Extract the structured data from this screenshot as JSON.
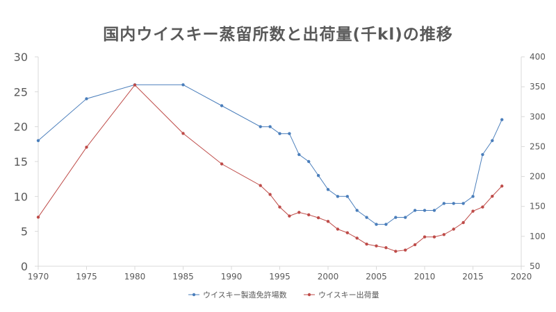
{
  "chart_data": {
    "type": "line",
    "title": "国内ウイスキー蒸留所数と出荷量(千kl)の推移",
    "xlabel": "",
    "ylabel": "",
    "xlim": [
      1970,
      2020
    ],
    "x_ticks": [
      1970,
      1975,
      1980,
      1985,
      1990,
      1995,
      2000,
      2005,
      2010,
      2015,
      2020
    ],
    "ylim_left": [
      0,
      30
    ],
    "y_ticks_left": [
      0,
      5,
      10,
      15,
      20,
      25,
      30
    ],
    "ylim_right": [
      50,
      400
    ],
    "y_ticks_right": [
      50,
      100,
      150,
      200,
      250,
      300,
      350,
      400
    ],
    "grid": false,
    "legend_position": "bottom",
    "series": [
      {
        "name": "ウイスキー製造免許場数",
        "axis": "left",
        "color": "#4a7ebb",
        "x": [
          1970,
          1975,
          1980,
          1985,
          1989,
          1993,
          1994,
          1995,
          1996,
          1997,
          1998,
          1999,
          2000,
          2001,
          2002,
          2003,
          2004,
          2005,
          2006,
          2007,
          2008,
          2009,
          2010,
          2011,
          2012,
          2013,
          2014,
          2015,
          2016,
          2017,
          2018
        ],
        "values": [
          18,
          24,
          26,
          26,
          23,
          20,
          20,
          19,
          19,
          16,
          15,
          13,
          11,
          10,
          10,
          8,
          7,
          6,
          6,
          7,
          7,
          8,
          8,
          8,
          9,
          9,
          9,
          10,
          16,
          18,
          21
        ]
      },
      {
        "name": "ウイスキー出荷量",
        "axis": "right",
        "color": "#be4b48",
        "x": [
          1970,
          1975,
          1980,
          1985,
          1989,
          1993,
          1994,
          1995,
          1996,
          1997,
          1998,
          1999,
          2000,
          2001,
          2002,
          2003,
          2004,
          2005,
          2006,
          2007,
          2008,
          2009,
          2010,
          2011,
          2012,
          2013,
          2014,
          2015,
          2016,
          2017,
          2018
        ],
        "values": [
          132,
          249,
          353,
          272,
          221,
          185,
          170,
          149,
          134,
          140,
          136,
          131,
          125,
          112,
          106,
          97,
          87,
          84,
          81,
          75,
          77,
          86,
          99,
          99,
          103,
          112,
          123,
          142,
          149,
          167,
          184
        ]
      }
    ]
  }
}
